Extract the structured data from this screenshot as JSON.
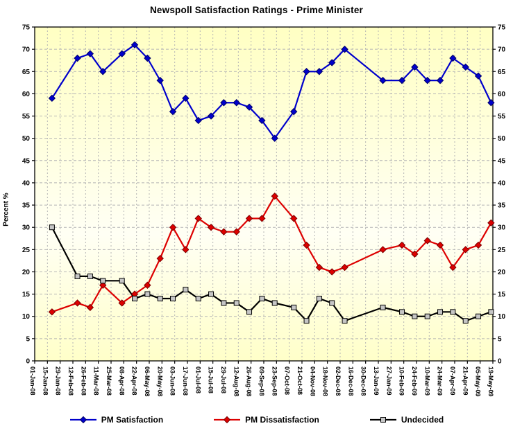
{
  "chart_data": {
    "type": "line",
    "title": "Newspoll Satisfaction Ratings - Prime Minister",
    "ylabel": "Percent %",
    "ylim": [
      0,
      75
    ],
    "ytick_step": 5,
    "grid": true,
    "legend_position": "bottom",
    "plot_bg_top": "#ffffc3",
    "plot_bg_mid": "#fffff4",
    "plot_bg_bottom": "#ffffc9",
    "gridline_color": "#b4b4b4",
    "x_axis": {
      "start_label": "01-Jan-08",
      "end_label": "19-May-09",
      "tick_interval_days": 14,
      "tick_labels": [
        "01-Jan-08",
        "15-Jan-08",
        "29-Jan-08",
        "12-Feb-08",
        "26-Feb-08",
        "11-Mar-08",
        "25-Mar-08",
        "08-Apr-08",
        "22-Apr-08",
        "06-May-08",
        "20-May-08",
        "03-Jun-08",
        "17-Jun-08",
        "01-Jul-08",
        "15-Jul-08",
        "29-Jul-08",
        "12-Aug-08",
        "26-Aug-08",
        "09-Sep-08",
        "23-Sep-08",
        "07-Oct-08",
        "21-Oct-08",
        "04-Nov-08",
        "18-Nov-08",
        "02-Dec-08",
        "16-Dec-08",
        "30-Dec-08",
        "13-Jan-09",
        "27-Jan-09",
        "10-Feb-09",
        "24-Feb-09",
        "10-Mar-09",
        "24-Mar-09",
        "07-Apr-09",
        "21-Apr-09",
        "05-May-09",
        "19-May-09"
      ]
    },
    "poll_dates": [
      "20-Jan-08",
      "17-Feb-08",
      "02-Mar-08",
      "16-Mar-08",
      "06-Apr-08",
      "20-Apr-08",
      "04-May-08",
      "18-May-08",
      "01-Jun-08",
      "15-Jun-08",
      "29-Jun-08",
      "13-Jul-08",
      "27-Jul-08",
      "10-Aug-08",
      "24-Aug-08",
      "07-Sep-08",
      "21-Sep-08",
      "12-Oct-08",
      "26-Oct-08",
      "09-Nov-08",
      "23-Nov-08",
      "07-Dec-08",
      "18-Jan-09",
      "08-Feb-09",
      "22-Feb-09",
      "08-Mar-09",
      "22-Mar-09",
      "05-Apr-09",
      "19-Apr-09",
      "03-May-09",
      "17-May-09"
    ],
    "series": [
      {
        "name": "PM Satisfaction",
        "color": "#0000cc",
        "marker": "diamond",
        "marker_fill": "#0000cc",
        "marker_edge": "#000066",
        "values": [
          59,
          68,
          69,
          65,
          69,
          71,
          68,
          63,
          56,
          59,
          54,
          55,
          58,
          58,
          57,
          54,
          50,
          56,
          65,
          65,
          67,
          70,
          63,
          63,
          66,
          63,
          63,
          68,
          66,
          64,
          58
        ]
      },
      {
        "name": "PM Dissatisfaction",
        "color": "#dd0000",
        "marker": "diamond",
        "marker_fill": "#dd0000",
        "marker_edge": "#7a0000",
        "values": [
          11,
          13,
          12,
          17,
          13,
          15,
          17,
          23,
          30,
          25,
          32,
          30,
          29,
          29,
          32,
          32,
          37,
          32,
          26,
          21,
          20,
          21,
          25,
          26,
          24,
          27,
          26,
          21,
          25,
          26,
          31
        ]
      },
      {
        "name": "Undecided",
        "color": "#000000",
        "marker": "square",
        "marker_fill": "#c6c6c6",
        "marker_edge": "#000000",
        "values": [
          30,
          19,
          19,
          18,
          18,
          14,
          15,
          14,
          14,
          16,
          14,
          15,
          13,
          13,
          11,
          14,
          13,
          12,
          9,
          14,
          13,
          9,
          12,
          11,
          10,
          10,
          11,
          11,
          9,
          10,
          11
        ]
      }
    ]
  }
}
